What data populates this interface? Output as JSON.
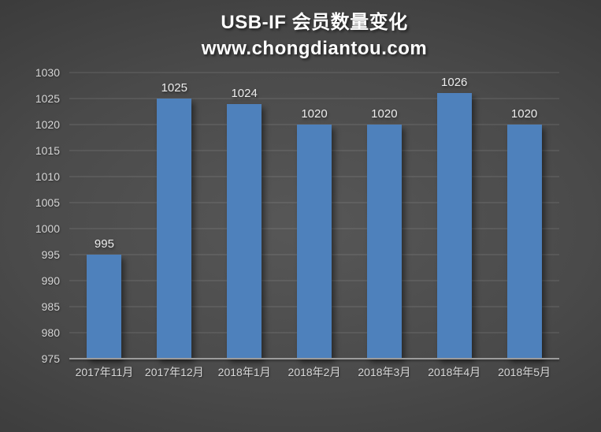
{
  "title": "USB-IF 会员数量变化",
  "subtitle": "www.chongdiantou.com",
  "colors": {
    "bar": "#4E81BC",
    "background_center": "#575757",
    "background_edge": "#2B2B2B",
    "gridline": "rgba(255,255,255,0.15)",
    "axis_line": "#9C9C9C",
    "tick_label_text": "#D6D6D6",
    "data_label_text": "#ECECEC",
    "title_text": "#FFFFFF"
  },
  "chart_data": {
    "type": "bar",
    "title": "USB-IF 会员数量变化",
    "subtitle": "www.chongdiantou.com",
    "categories": [
      "2017年11月",
      "2017年12月",
      "2018年1月",
      "2018年2月",
      "2018年3月",
      "2018年4月",
      "2018年5月"
    ],
    "values": [
      995,
      1025,
      1024,
      1020,
      1020,
      1026,
      1020
    ],
    "data_labels": [
      "995",
      "1025",
      "1024",
      "1020",
      "1020",
      "1026",
      "1020"
    ],
    "xlabel": "",
    "ylabel": "",
    "ylim": [
      975,
      1030
    ],
    "ytick_step": 5,
    "yticks": [
      975,
      980,
      985,
      990,
      995,
      1000,
      1005,
      1010,
      1015,
      1020,
      1025,
      1030
    ],
    "grid": true,
    "legend": false,
    "legend_position": "none"
  }
}
